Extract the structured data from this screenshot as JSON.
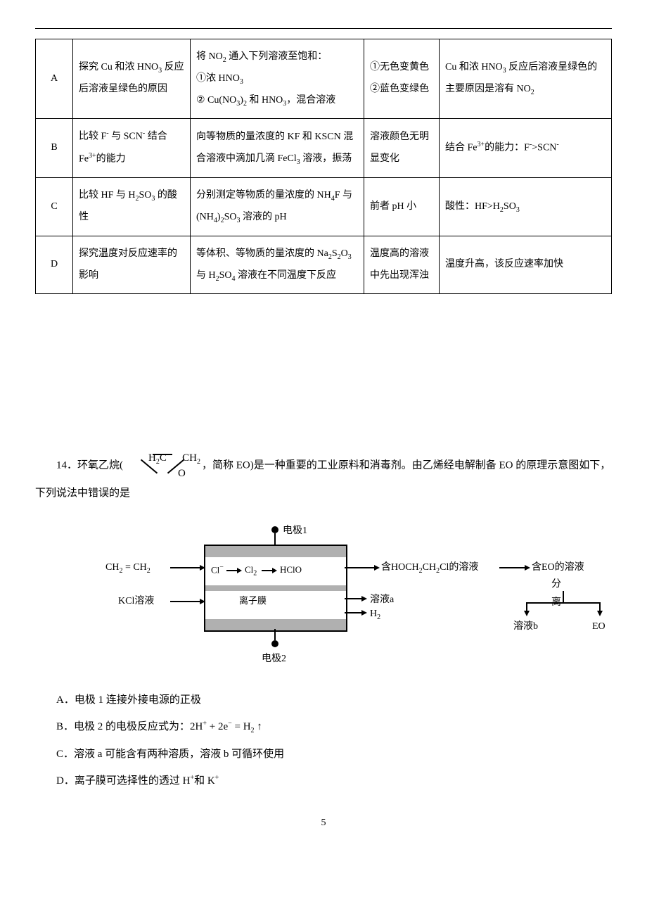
{
  "table": {
    "rows": [
      {
        "label": "A",
        "purpose": "探究 Cu 和浓 HNO<span class='sub'>3</span> 反应后溶液呈绿色的原因",
        "operation": "将 NO<span class='sub'>2</span> 通入下列溶液至饱和：<br>①浓 HNO<span class='sub'>3</span><br>② Cu(NO<span class='sub'>3</span>)<span class='sub'>2</span> 和 HNO<span class='sub'>3</span>，混合溶液",
        "phenomenon": "①无色变黄色<br>②蓝色变绿色",
        "conclusion": "Cu 和浓 HNO<span class='sub'>3</span> 反应后溶液呈绿色的主要原因是溶有 NO<span class='sub'>2</span>"
      },
      {
        "label": "B",
        "purpose": "比较 F<span class='sup'>-</span> 与 SCN<span class='sup'>-</span> 结合 Fe<span class='sup'>3+</span>的能力",
        "operation": "向等物质的量浓度的 KF 和 KSCN 混合溶液中滴加几滴 FeCl<span class='sub'>3</span> 溶液，振荡",
        "phenomenon": "溶液颜色无明显变化",
        "conclusion": "结合 Fe<span class='sup'>3+</span>的能力：F<span class='sup'>-</span>&gt;SCN<span class='sup'>-</span>"
      },
      {
        "label": "C",
        "purpose": "比较 HF 与 H<span class='sub'>2</span>SO<span class='sub'>3</span> 的酸性",
        "operation": "分别测定等物质的量浓度的 NH<span class='sub'>4</span>F 与 (NH<span class='sub'>4</span>)<span class='sub'>2</span>SO<span class='sub'>3</span> 溶液的 pH",
        "phenomenon": "前者 pH 小",
        "conclusion": "酸性：HF&gt;H<span class='sub'>2</span>SO<span class='sub'>3</span>"
      },
      {
        "label": "D",
        "purpose": "探究温度对反应速率的影响",
        "operation": "等体积、等物质的量浓度的 Na<span class='sub'>2</span>S<span class='sub'>2</span>O<span class='sub'>3</span> 与 H<span class='sub'>2</span>SO<span class='sub'>4</span> 溶液在不同温度下反应",
        "phenomenon": "温度高的溶液中先出现浑浊",
        "conclusion": "温度升高，该反应速率加快"
      }
    ]
  },
  "q14": {
    "number": "14．",
    "stem_prefix": "环氧乙烷(",
    "stem_suffix": "，简称 EO)是一种重要的工业原料和消毒剂。由乙烯经电解制备 EO 的原理示意图如下，下列说法中错误的是",
    "struct": {
      "h2c": "H<span class='sub'>2</span>C",
      "ch2": "CH<span class='sub'>2</span>",
      "o": "O"
    },
    "diagram": {
      "electrode1": "电极1",
      "electrode2": "电极2",
      "input_ethylene": "CH<span class='sub'>2</span> = CH<span class='sub'>2</span>",
      "input_kcl": "KCl溶液",
      "cl_minus": "Cl<span class='sup'>−</span>",
      "cl2": "Cl<span class='sub'>2</span>",
      "hclo": "HClO",
      "membrane": "离子膜",
      "out_hoch": "含HOCH<span class='sub'>2</span>CH<span class='sub'>2</span>Cl的溶液",
      "out_a": "溶液a",
      "out_h2": "H<span class='sub'>2</span>",
      "right_sol": "含EO的溶液",
      "separate": "分离",
      "out_b": "溶液b",
      "out_eo": "EO",
      "colors": {
        "band": "#b0b0b0",
        "line": "#000000",
        "bg": "#ffffff"
      }
    },
    "options": {
      "A": "A．电极 1 连接外接电源的正极",
      "B": "B．电极 2 的电极反应式为：2H<span class='sup'>+</span> + 2e<span class='sup'>−</span> = H<span class='sub'>2</span> ↑",
      "C": "C．溶液 a 可能含有两种溶质，溶液 b 可循环使用",
      "D": "D．离子膜可选择性的透过 H<span class='sup'>+</span>和 K<span class='sup'>+</span>"
    }
  },
  "page_number": "5"
}
